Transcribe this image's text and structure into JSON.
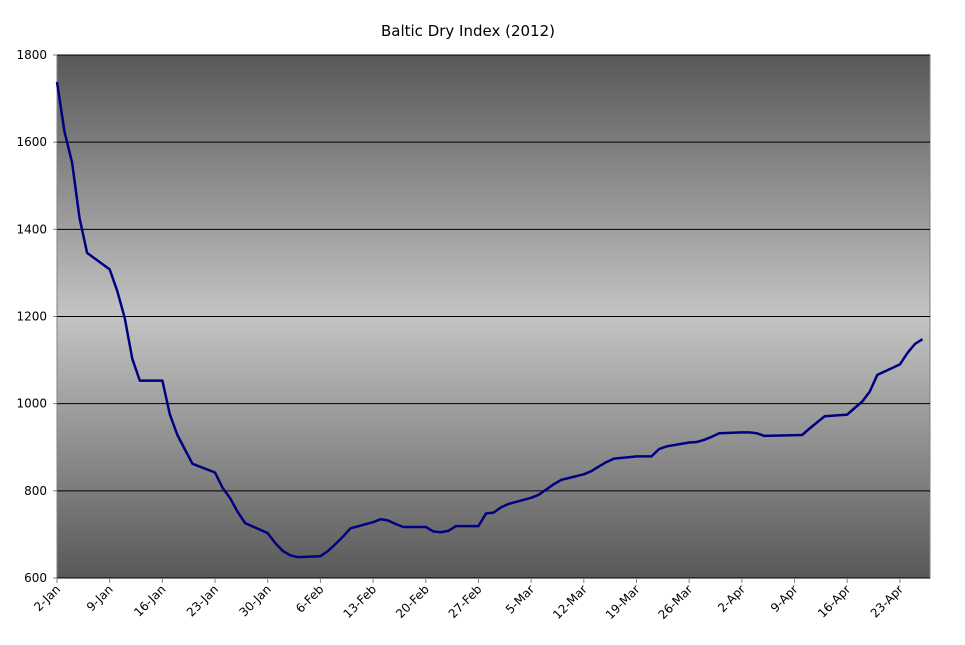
{
  "chart_data": {
    "type": "line",
    "title": "Baltic Dry Index (2012)",
    "x": [
      "2-Jan",
      "3-Jan",
      "4-Jan",
      "5-Jan",
      "6-Jan",
      "9-Jan",
      "10-Jan",
      "11-Jan",
      "12-Jan",
      "13-Jan",
      "16-Jan",
      "17-Jan",
      "18-Jan",
      "19-Jan",
      "20-Jan",
      "23-Jan",
      "24-Jan",
      "25-Jan",
      "26-Jan",
      "27-Jan",
      "30-Jan",
      "31-Jan",
      "1-Feb",
      "2-Feb",
      "3-Feb",
      "6-Feb",
      "7-Feb",
      "8-Feb",
      "9-Feb",
      "10-Feb",
      "13-Feb",
      "14-Feb",
      "15-Feb",
      "16-Feb",
      "17-Feb",
      "20-Feb",
      "21-Feb",
      "22-Feb",
      "23-Feb",
      "24-Feb",
      "27-Feb",
      "28-Feb",
      "29-Feb",
      "1-Mar",
      "2-Mar",
      "5-Mar",
      "6-Mar",
      "7-Mar",
      "8-Mar",
      "9-Mar",
      "12-Mar",
      "13-Mar",
      "14-Mar",
      "15-Mar",
      "16-Mar",
      "19-Mar",
      "20-Mar",
      "21-Mar",
      "22-Mar",
      "23-Mar",
      "26-Mar",
      "27-Mar",
      "28-Mar",
      "29-Mar",
      "30-Mar",
      "2-Apr",
      "3-Apr",
      "4-Apr",
      "5-Apr",
      "10-Apr",
      "11-Apr",
      "12-Apr",
      "13-Apr",
      "16-Apr",
      "17-Apr",
      "18-Apr",
      "19-Apr",
      "20-Apr",
      "23-Apr",
      "24-Apr",
      "25-Apr",
      "26-Apr"
    ],
    "series": [
      {
        "name": "Baltic Dry Index",
        "color": "#000080",
        "values": [
          1738,
          1624,
          1553,
          1425,
          1346,
          1308,
          1259,
          1197,
          1103,
          1053,
          1053,
          975,
          928,
          895,
          862,
          842,
          807,
          783,
          752,
          726,
          703,
          680,
          662,
          652,
          648,
          650,
          662,
          678,
          695,
          714,
          728,
          735,
          732,
          724,
          717,
          717,
          707,
          705,
          708,
          719,
          719,
          748,
          750,
          762,
          770,
          784,
          791,
          803,
          815,
          825,
          838,
          845,
          856,
          866,
          874,
          879,
          879,
          879,
          896,
          902,
          911,
          912,
          917,
          924,
          932,
          934,
          934,
          932,
          926,
          928,
          943,
          957,
          971,
          975,
          990,
          1005,
          1028,
          1066,
          1090,
          1116,
          1137,
          1148
        ]
      }
    ],
    "xlim": [
      "2-Jan",
      "27-Apr"
    ],
    "xticks": [
      "2-Jan",
      "9-Jan",
      "16-Jan",
      "23-Jan",
      "30-Jan",
      "6-Feb",
      "13-Feb",
      "20-Feb",
      "27-Feb",
      "5-Mar",
      "12-Mar",
      "19-Mar",
      "26-Mar",
      "2-Apr",
      "9-Apr",
      "16-Apr",
      "23-Apr"
    ],
    "ylim": [
      600,
      1800
    ],
    "yticks": [
      600,
      800,
      1000,
      1200,
      1400,
      1600,
      1800
    ],
    "grid": true
  }
}
